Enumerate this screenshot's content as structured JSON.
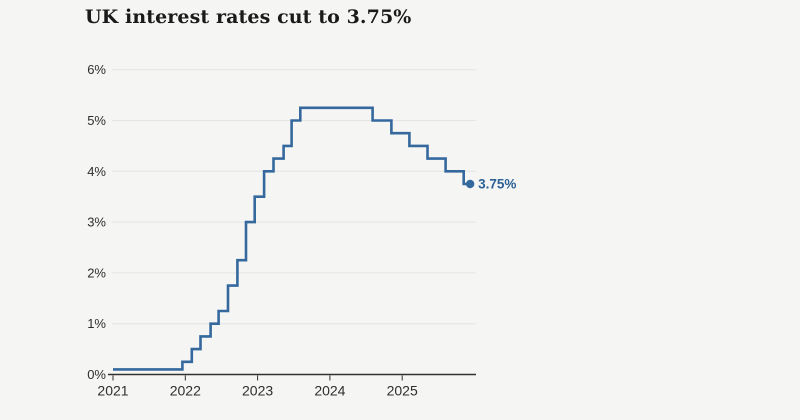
{
  "page": {
    "background": "#f5f5f4"
  },
  "chart": {
    "title": "UK interest rates cut to 3.75%",
    "colors": {
      "line": "#35699e",
      "end_label": "#2d6296",
      "grid": "#e4e4e2",
      "axis": "#33302e",
      "tick_text": "#2e2e2e",
      "title_text": "#1a1a1a"
    }
  },
  "chart_data": {
    "type": "line",
    "subtype": "step",
    "title": "UK interest rates cut to 3.75%",
    "unit": "%",
    "points": [
      [
        2021.0,
        0.1
      ],
      [
        2021.96,
        0.25
      ],
      [
        2022.09,
        0.5
      ],
      [
        2022.21,
        0.75
      ],
      [
        2022.35,
        1.0
      ],
      [
        2022.46,
        1.25
      ],
      [
        2022.59,
        1.75
      ],
      [
        2022.72,
        2.25
      ],
      [
        2022.84,
        3.0
      ],
      [
        2022.96,
        3.5
      ],
      [
        2023.09,
        4.0
      ],
      [
        2023.22,
        4.25
      ],
      [
        2023.36,
        4.5
      ],
      [
        2023.47,
        5.0
      ],
      [
        2023.59,
        5.25
      ],
      [
        2024.59,
        5.0
      ],
      [
        2024.85,
        4.75
      ],
      [
        2025.1,
        4.5
      ],
      [
        2025.35,
        4.25
      ],
      [
        2025.6,
        4.0
      ],
      [
        2025.85,
        3.75
      ],
      [
        2025.94,
        3.75
      ]
    ],
    "xticks": [
      "2021",
      "2022",
      "2023",
      "2024",
      "2025"
    ],
    "xtick_years": [
      2021,
      2022,
      2023,
      2024,
      2025
    ],
    "yticks": [
      "0%",
      "1%",
      "2%",
      "3%",
      "4%",
      "5%",
      "6%"
    ],
    "ytick_values": [
      0,
      1,
      2,
      3,
      4,
      5,
      6
    ],
    "ylim": [
      0,
      6
    ],
    "xlim": [
      2021,
      2026.05
    ],
    "grid": "horizontal",
    "legend": "none",
    "annotation": {
      "text": "3.75%",
      "x": 2025.94,
      "y": 3.75
    }
  }
}
